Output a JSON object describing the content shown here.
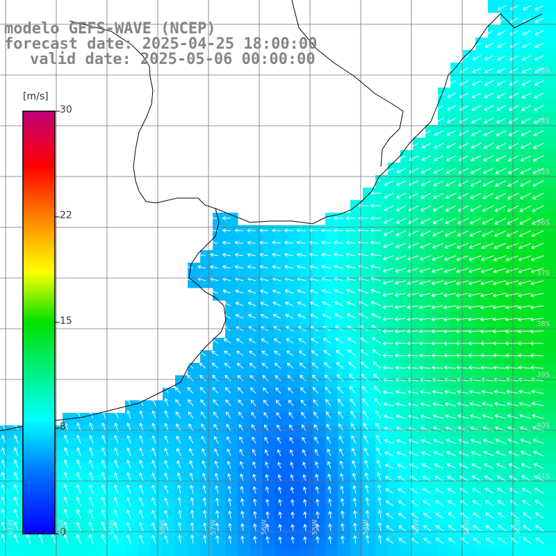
{
  "header": {
    "line1": "modelo GEFS-WAVE (NCEP)",
    "line2": "forecast date: 2025-04-25 18:00:00",
    "line3": "valid date: 2025-05-06 00:00:00"
  },
  "colorbar": {
    "unit": "[m/s]",
    "ticks": [
      "0",
      "8",
      "15",
      "22",
      "30"
    ],
    "range": [
      0,
      30
    ],
    "colors": [
      "#0000ff",
      "#0080ff",
      "#00ffff",
      "#00ff00",
      "#ffff00",
      "#ff8000",
      "#ff0000",
      "#c00080"
    ]
  },
  "lat_labels": [
    "33S",
    "34S",
    "35S",
    "36S",
    "37S",
    "38S",
    "39S",
    "40S",
    "41S"
  ],
  "lon_labels": [
    "61W",
    "60W",
    "59W",
    "58W",
    "57W",
    "56W",
    "55W",
    "54W",
    "53W",
    "52W",
    "51W"
  ],
  "colors": {
    "land": "#ffffff",
    "grid": "#707070",
    "coast": "#000000",
    "arrow": "#ffffff"
  }
}
